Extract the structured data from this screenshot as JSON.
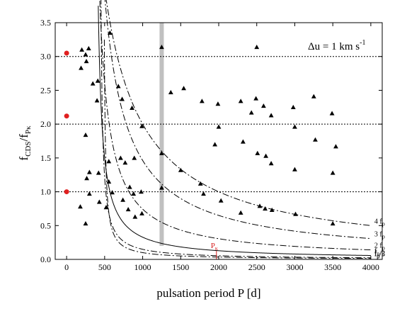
{
  "chart_data": {
    "type": "scatter",
    "xlabel": "pulsation period P [d]",
    "ylabel_main": "f",
    "ylabel_sub": "CDS",
    "ylabel_mid": "/f",
    "ylabel_sub2": "Pκ",
    "annotation": {
      "prefix": "Δu = 1 km  s",
      "exponent": "-1"
    },
    "xlim": [
      -150,
      4150
    ],
    "ylim": [
      0,
      3.5
    ],
    "xticks": [
      0,
      500,
      1000,
      1500,
      2000,
      2500,
      3000,
      3500,
      4000
    ],
    "yticks": [
      0.0,
      0.5,
      1.0,
      1.5,
      2.0,
      2.5,
      3.0,
      3.5
    ],
    "dotted_hlines": [
      1.0,
      2.0,
      3.0
    ],
    "vband": {
      "x": 1250,
      "ymin": 0.2,
      "ymax": 3.5,
      "color": "#c0c0c0"
    },
    "pk_marker": {
      "label_main": "P",
      "label_sub": "κ",
      "x": 1970,
      "color": "#d62020"
    },
    "red_points": [
      {
        "x": 0,
        "y": 1.0
      },
      {
        "x": 0,
        "y": 2.12
      },
      {
        "x": 0,
        "y": 3.05
      }
    ],
    "curves": [
      {
        "label_main": "f",
        "label_sub": "p",
        "label_suffix": "/3",
        "style": "dashdot",
        "k": 0.052,
        "a": 0.48
      },
      {
        "label_main": "f",
        "label_sub": "p",
        "label_suffix": "/2",
        "style": "dashdot",
        "k": 0.085,
        "a": 0.43
      },
      {
        "label_main": "f",
        "label_sub": "p",
        "label_suffix": "",
        "style": "solid",
        "k": 0.21,
        "a": 0.36
      },
      {
        "label_main": "2 f",
        "label_sub": "p",
        "label_suffix": "",
        "style": "dashdot",
        "k": 0.52,
        "a": 0.3
      },
      {
        "label_main": "3 f",
        "label_sub": "p",
        "label_suffix": "",
        "style": "dashdot",
        "k": 1.17,
        "a": 0.2
      },
      {
        "label_main": "4 f",
        "label_sub": "p",
        "label_suffix": "",
        "style": "dashdot",
        "k": 2.0,
        "a": 0.0
      }
    ],
    "triangles": [
      {
        "x": 190,
        "y": 2.83
      },
      {
        "x": 200,
        "y": 3.1
      },
      {
        "x": 250,
        "y": 3.03
      },
      {
        "x": 290,
        "y": 3.12
      },
      {
        "x": 260,
        "y": 2.93
      },
      {
        "x": 345,
        "y": 2.6
      },
      {
        "x": 410,
        "y": 2.64
      },
      {
        "x": 400,
        "y": 2.35
      },
      {
        "x": 250,
        "y": 1.84
      },
      {
        "x": 180,
        "y": 0.78
      },
      {
        "x": 250,
        "y": 0.53
      },
      {
        "x": 265,
        "y": 1.2
      },
      {
        "x": 300,
        "y": 1.29
      },
      {
        "x": 300,
        "y": 0.97
      },
      {
        "x": 420,
        "y": 1.28
      },
      {
        "x": 430,
        "y": 0.85
      },
      {
        "x": 520,
        "y": 0.77
      },
      {
        "x": 555,
        "y": 1.45
      },
      {
        "x": 555,
        "y": 1.15
      },
      {
        "x": 600,
        "y": 0.99
      },
      {
        "x": 570,
        "y": 3.35
      },
      {
        "x": 680,
        "y": 2.56
      },
      {
        "x": 730,
        "y": 2.37
      },
      {
        "x": 710,
        "y": 1.5
      },
      {
        "x": 770,
        "y": 1.43
      },
      {
        "x": 740,
        "y": 0.88
      },
      {
        "x": 830,
        "y": 1.07
      },
      {
        "x": 810,
        "y": 0.74
      },
      {
        "x": 860,
        "y": 2.24
      },
      {
        "x": 880,
        "y": 0.97
      },
      {
        "x": 900,
        "y": 0.63
      },
      {
        "x": 890,
        "y": 1.5
      },
      {
        "x": 990,
        "y": 1.97
      },
      {
        "x": 980,
        "y": 1.0
      },
      {
        "x": 990,
        "y": 0.68
      },
      {
        "x": 1250,
        "y": 3.14
      },
      {
        "x": 1250,
        "y": 1.57
      },
      {
        "x": 1250,
        "y": 1.06
      },
      {
        "x": 1370,
        "y": 2.47
      },
      {
        "x": 1500,
        "y": 1.32
      },
      {
        "x": 1540,
        "y": 2.53
      },
      {
        "x": 1760,
        "y": 1.12
      },
      {
        "x": 1780,
        "y": 2.34
      },
      {
        "x": 1800,
        "y": 0.97
      },
      {
        "x": 1950,
        "y": 1.7
      },
      {
        "x": 1990,
        "y": 2.3
      },
      {
        "x": 2000,
        "y": 1.96
      },
      {
        "x": 2030,
        "y": 0.87
      },
      {
        "x": 2290,
        "y": 2.34
      },
      {
        "x": 2290,
        "y": 0.69
      },
      {
        "x": 2320,
        "y": 1.74
      },
      {
        "x": 2430,
        "y": 2.17
      },
      {
        "x": 2490,
        "y": 2.38
      },
      {
        "x": 2500,
        "y": 3.14
      },
      {
        "x": 2510,
        "y": 1.57
      },
      {
        "x": 2540,
        "y": 0.79
      },
      {
        "x": 2590,
        "y": 2.27
      },
      {
        "x": 2610,
        "y": 0.75
      },
      {
        "x": 2620,
        "y": 1.53
      },
      {
        "x": 2690,
        "y": 2.13
      },
      {
        "x": 2690,
        "y": 1.42
      },
      {
        "x": 2700,
        "y": 0.73
      },
      {
        "x": 2980,
        "y": 2.25
      },
      {
        "x": 3000,
        "y": 1.96
      },
      {
        "x": 3000,
        "y": 1.33
      },
      {
        "x": 3010,
        "y": 0.67
      },
      {
        "x": 3250,
        "y": 2.41
      },
      {
        "x": 3270,
        "y": 1.77
      },
      {
        "x": 3490,
        "y": 2.16
      },
      {
        "x": 3500,
        "y": 1.28
      },
      {
        "x": 3500,
        "y": 0.53
      },
      {
        "x": 3540,
        "y": 1.67
      }
    ]
  }
}
